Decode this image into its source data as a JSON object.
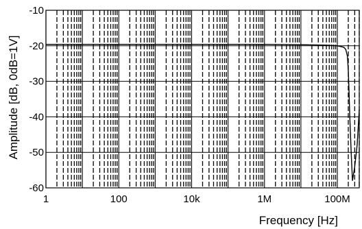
{
  "chart_data": {
    "type": "line",
    "xlabel": "Frequency [Hz]",
    "ylabel": "Amplitude [dB, 0dB=1V]",
    "x_scale": "log",
    "xlim": [
      1,
      400000000
    ],
    "ylim": [
      -60,
      -10
    ],
    "x_ticks": [
      1,
      100,
      10000,
      1000000,
      100000000
    ],
    "x_tick_labels": [
      "1",
      "100",
      "10k",
      "1M",
      "100M"
    ],
    "y_ticks": [
      -10,
      -20,
      -30,
      -40,
      -50,
      -60
    ],
    "y_tick_labels": [
      "-10",
      "-20",
      "-30",
      "-40",
      "-50",
      "-60"
    ],
    "grid": true,
    "series": [
      {
        "x": [
          1,
          1000000,
          10000000,
          50000000,
          100000000,
          150000000,
          170000000,
          190000000,
          200000000,
          210000000,
          220000000,
          240000000,
          260000000,
          300000000,
          350000000,
          400000000
        ],
        "y": [
          -19.6,
          -19.6,
          -19.7,
          -19.8,
          -20.0,
          -20.4,
          -21.0,
          -23.0,
          -27.0,
          -33.0,
          -40.0,
          -50.0,
          -58.0,
          -54.0,
          -48.0,
          -38.0
        ]
      }
    ],
    "colors": {
      "line": "#000000",
      "grid": "#000000",
      "background": "#ffffff"
    }
  }
}
